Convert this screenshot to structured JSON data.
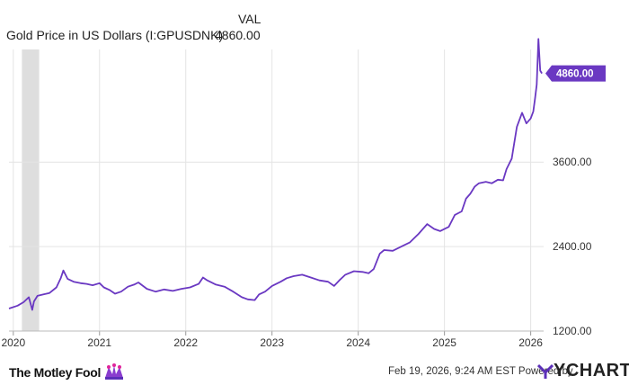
{
  "legend": {
    "column_header": "VAL",
    "series_name": "Gold Price in US Dollars (I:GPUSDNK)",
    "series_value": "4860.00"
  },
  "footer": {
    "brand": "The Motley Fool",
    "timestamp": "Feb 19, 2026, 9:24 AM EST",
    "powered_by": "Powered by",
    "provider": "YCHARTS"
  },
  "colors": {
    "line": "#6a38c2",
    "badge": "#6a38c2",
    "recession_band": "#dedede",
    "grid": "#e4e4e4"
  },
  "chart_data": {
    "type": "line",
    "title": "Gold Price in US Dollars (I:GPUSDNK)",
    "x_ticks": [
      "2020",
      "2021",
      "2022",
      "2023",
      "2024",
      "2025",
      "2026"
    ],
    "y_ticks": [
      "1200.00",
      "2400.00",
      "3600.00"
    ],
    "ylim": [
      1200,
      5200
    ],
    "xlim": [
      2019.95,
      2026.15
    ],
    "grid": true,
    "recession_band": [
      2020.1,
      2020.3
    ],
    "last_value_label": "4860.00",
    "series": [
      {
        "name": "Gold Price in US Dollars (I:GPUSDNK)",
        "x": [
          2019.95,
          2020.05,
          2020.12,
          2020.18,
          2020.22,
          2020.24,
          2020.28,
          2020.35,
          2020.42,
          2020.5,
          2020.55,
          2020.58,
          2020.63,
          2020.7,
          2020.78,
          2020.85,
          2020.92,
          2021.0,
          2021.05,
          2021.12,
          2021.18,
          2021.25,
          2021.33,
          2021.4,
          2021.45,
          2021.55,
          2021.65,
          2021.75,
          2021.85,
          2021.95,
          2022.05,
          2022.15,
          2022.2,
          2022.25,
          2022.35,
          2022.45,
          2022.55,
          2022.65,
          2022.72,
          2022.8,
          2022.85,
          2022.92,
          2023.0,
          2023.1,
          2023.17,
          2023.25,
          2023.35,
          2023.45,
          2023.55,
          2023.65,
          2023.72,
          2023.78,
          2023.85,
          2023.95,
          2024.05,
          2024.12,
          2024.18,
          2024.25,
          2024.3,
          2024.4,
          2024.5,
          2024.6,
          2024.7,
          2024.8,
          2024.88,
          2024.95,
          2025.05,
          2025.12,
          2025.2,
          2025.25,
          2025.3,
          2025.35,
          2025.4,
          2025.48,
          2025.55,
          2025.62,
          2025.68,
          2025.72,
          2025.78,
          2025.8,
          2025.84,
          2025.9,
          2025.95,
          2026.0,
          2026.03,
          2026.05,
          2026.07,
          2026.09,
          2026.11,
          2026.13
        ],
        "values": [
          1520,
          1560,
          1610,
          1680,
          1500,
          1620,
          1700,
          1720,
          1740,
          1820,
          1950,
          2060,
          1940,
          1900,
          1880,
          1870,
          1850,
          1880,
          1820,
          1780,
          1730,
          1760,
          1830,
          1860,
          1890,
          1800,
          1760,
          1790,
          1770,
          1800,
          1820,
          1870,
          1960,
          1920,
          1860,
          1830,
          1760,
          1680,
          1650,
          1640,
          1720,
          1760,
          1840,
          1900,
          1950,
          1980,
          2000,
          1960,
          1920,
          1900,
          1840,
          1920,
          2000,
          2050,
          2040,
          2020,
          2080,
          2300,
          2350,
          2340,
          2400,
          2460,
          2580,
          2720,
          2650,
          2620,
          2680,
          2850,
          2900,
          3080,
          3150,
          3250,
          3300,
          3320,
          3300,
          3350,
          3340,
          3500,
          3650,
          3800,
          4100,
          4300,
          4150,
          4220,
          4320,
          4500,
          4700,
          5350,
          4900,
          4860
        ]
      }
    ]
  }
}
